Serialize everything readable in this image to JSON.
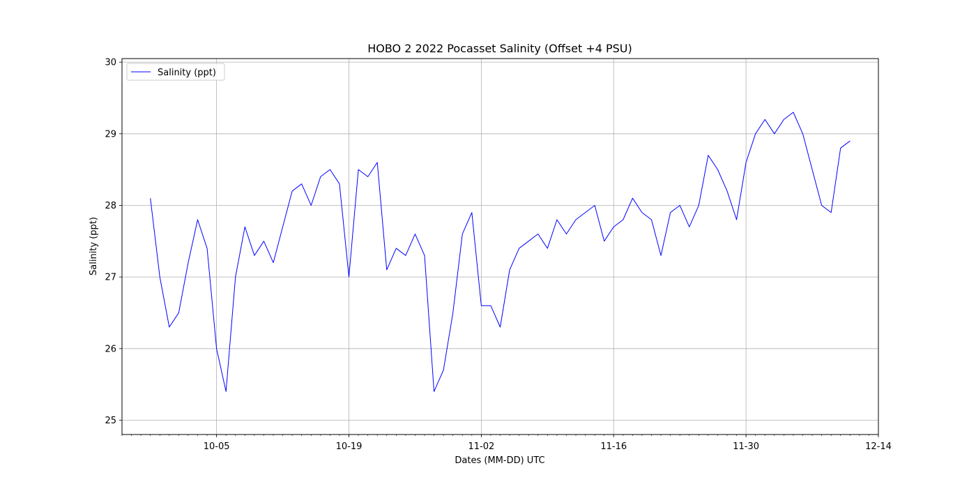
{
  "chart_data": {
    "type": "line",
    "title": "HOBO 2 2022 Pocasset Salinity (Offset +4 PSU)",
    "xlabel": "Dates (MM-DD) UTC",
    "ylabel": "Salinity (ppt)",
    "x_tick_labels": [
      "10-05",
      "10-19",
      "11-02",
      "11-16",
      "11-30",
      "12-14"
    ],
    "y_tick_labels": [
      "25",
      "26",
      "27",
      "28",
      "29",
      "30"
    ],
    "xlim": [
      "2022-09-25",
      "2022-12-14"
    ],
    "ylim": [
      24.8,
      30.05
    ],
    "grid": true,
    "legend_position": "upper-left",
    "color": "#0000ff",
    "series": [
      {
        "name": "Salinity (ppt)",
        "x": [
          "2022-09-28",
          "2022-09-29",
          "2022-09-30",
          "2022-10-01",
          "2022-10-02",
          "2022-10-03",
          "2022-10-04",
          "2022-10-05",
          "2022-10-06",
          "2022-10-07",
          "2022-10-08",
          "2022-10-09",
          "2022-10-10",
          "2022-10-11",
          "2022-10-12",
          "2022-10-13",
          "2022-10-14",
          "2022-10-15",
          "2022-10-16",
          "2022-10-17",
          "2022-10-18",
          "2022-10-19",
          "2022-10-20",
          "2022-10-21",
          "2022-10-22",
          "2022-10-23",
          "2022-10-24",
          "2022-10-25",
          "2022-10-26",
          "2022-10-27",
          "2022-10-28",
          "2022-10-29",
          "2022-10-30",
          "2022-10-31",
          "2022-11-01",
          "2022-11-02",
          "2022-11-03",
          "2022-11-04",
          "2022-11-05",
          "2022-11-06",
          "2022-11-07",
          "2022-11-08",
          "2022-11-09",
          "2022-11-10",
          "2022-11-11",
          "2022-11-12",
          "2022-11-13",
          "2022-11-14",
          "2022-11-15",
          "2022-11-16",
          "2022-11-17",
          "2022-11-18",
          "2022-11-19",
          "2022-11-20",
          "2022-11-21",
          "2022-11-22",
          "2022-11-23",
          "2022-11-24",
          "2022-11-25",
          "2022-11-26",
          "2022-11-27",
          "2022-11-28",
          "2022-11-29",
          "2022-11-30",
          "2022-12-01",
          "2022-12-02",
          "2022-12-03",
          "2022-12-04",
          "2022-12-05",
          "2022-12-06",
          "2022-12-07",
          "2022-12-08",
          "2022-12-09",
          "2022-12-10",
          "2022-12-11"
        ],
        "y": [
          28.1,
          27.0,
          26.3,
          26.5,
          27.2,
          27.8,
          27.4,
          26.0,
          25.4,
          27.0,
          27.7,
          27.3,
          27.5,
          27.2,
          27.7,
          28.2,
          28.3,
          28.0,
          28.4,
          28.5,
          28.3,
          27.0,
          28.5,
          28.4,
          28.6,
          27.1,
          27.4,
          27.3,
          27.6,
          27.3,
          25.4,
          25.7,
          26.5,
          27.6,
          27.9,
          26.6,
          26.6,
          26.3,
          27.1,
          27.4,
          27.5,
          27.6,
          27.4,
          27.8,
          27.6,
          27.8,
          27.9,
          28.0,
          27.5,
          27.7,
          27.8,
          28.1,
          27.9,
          27.8,
          27.3,
          27.9,
          28.0,
          27.7,
          28.0,
          28.7,
          28.5,
          28.2,
          27.8,
          28.6,
          29.0,
          29.2,
          29.0,
          29.2,
          29.3,
          29.0,
          28.5,
          28.0,
          27.9,
          28.8,
          28.9
        ]
      }
    ]
  }
}
